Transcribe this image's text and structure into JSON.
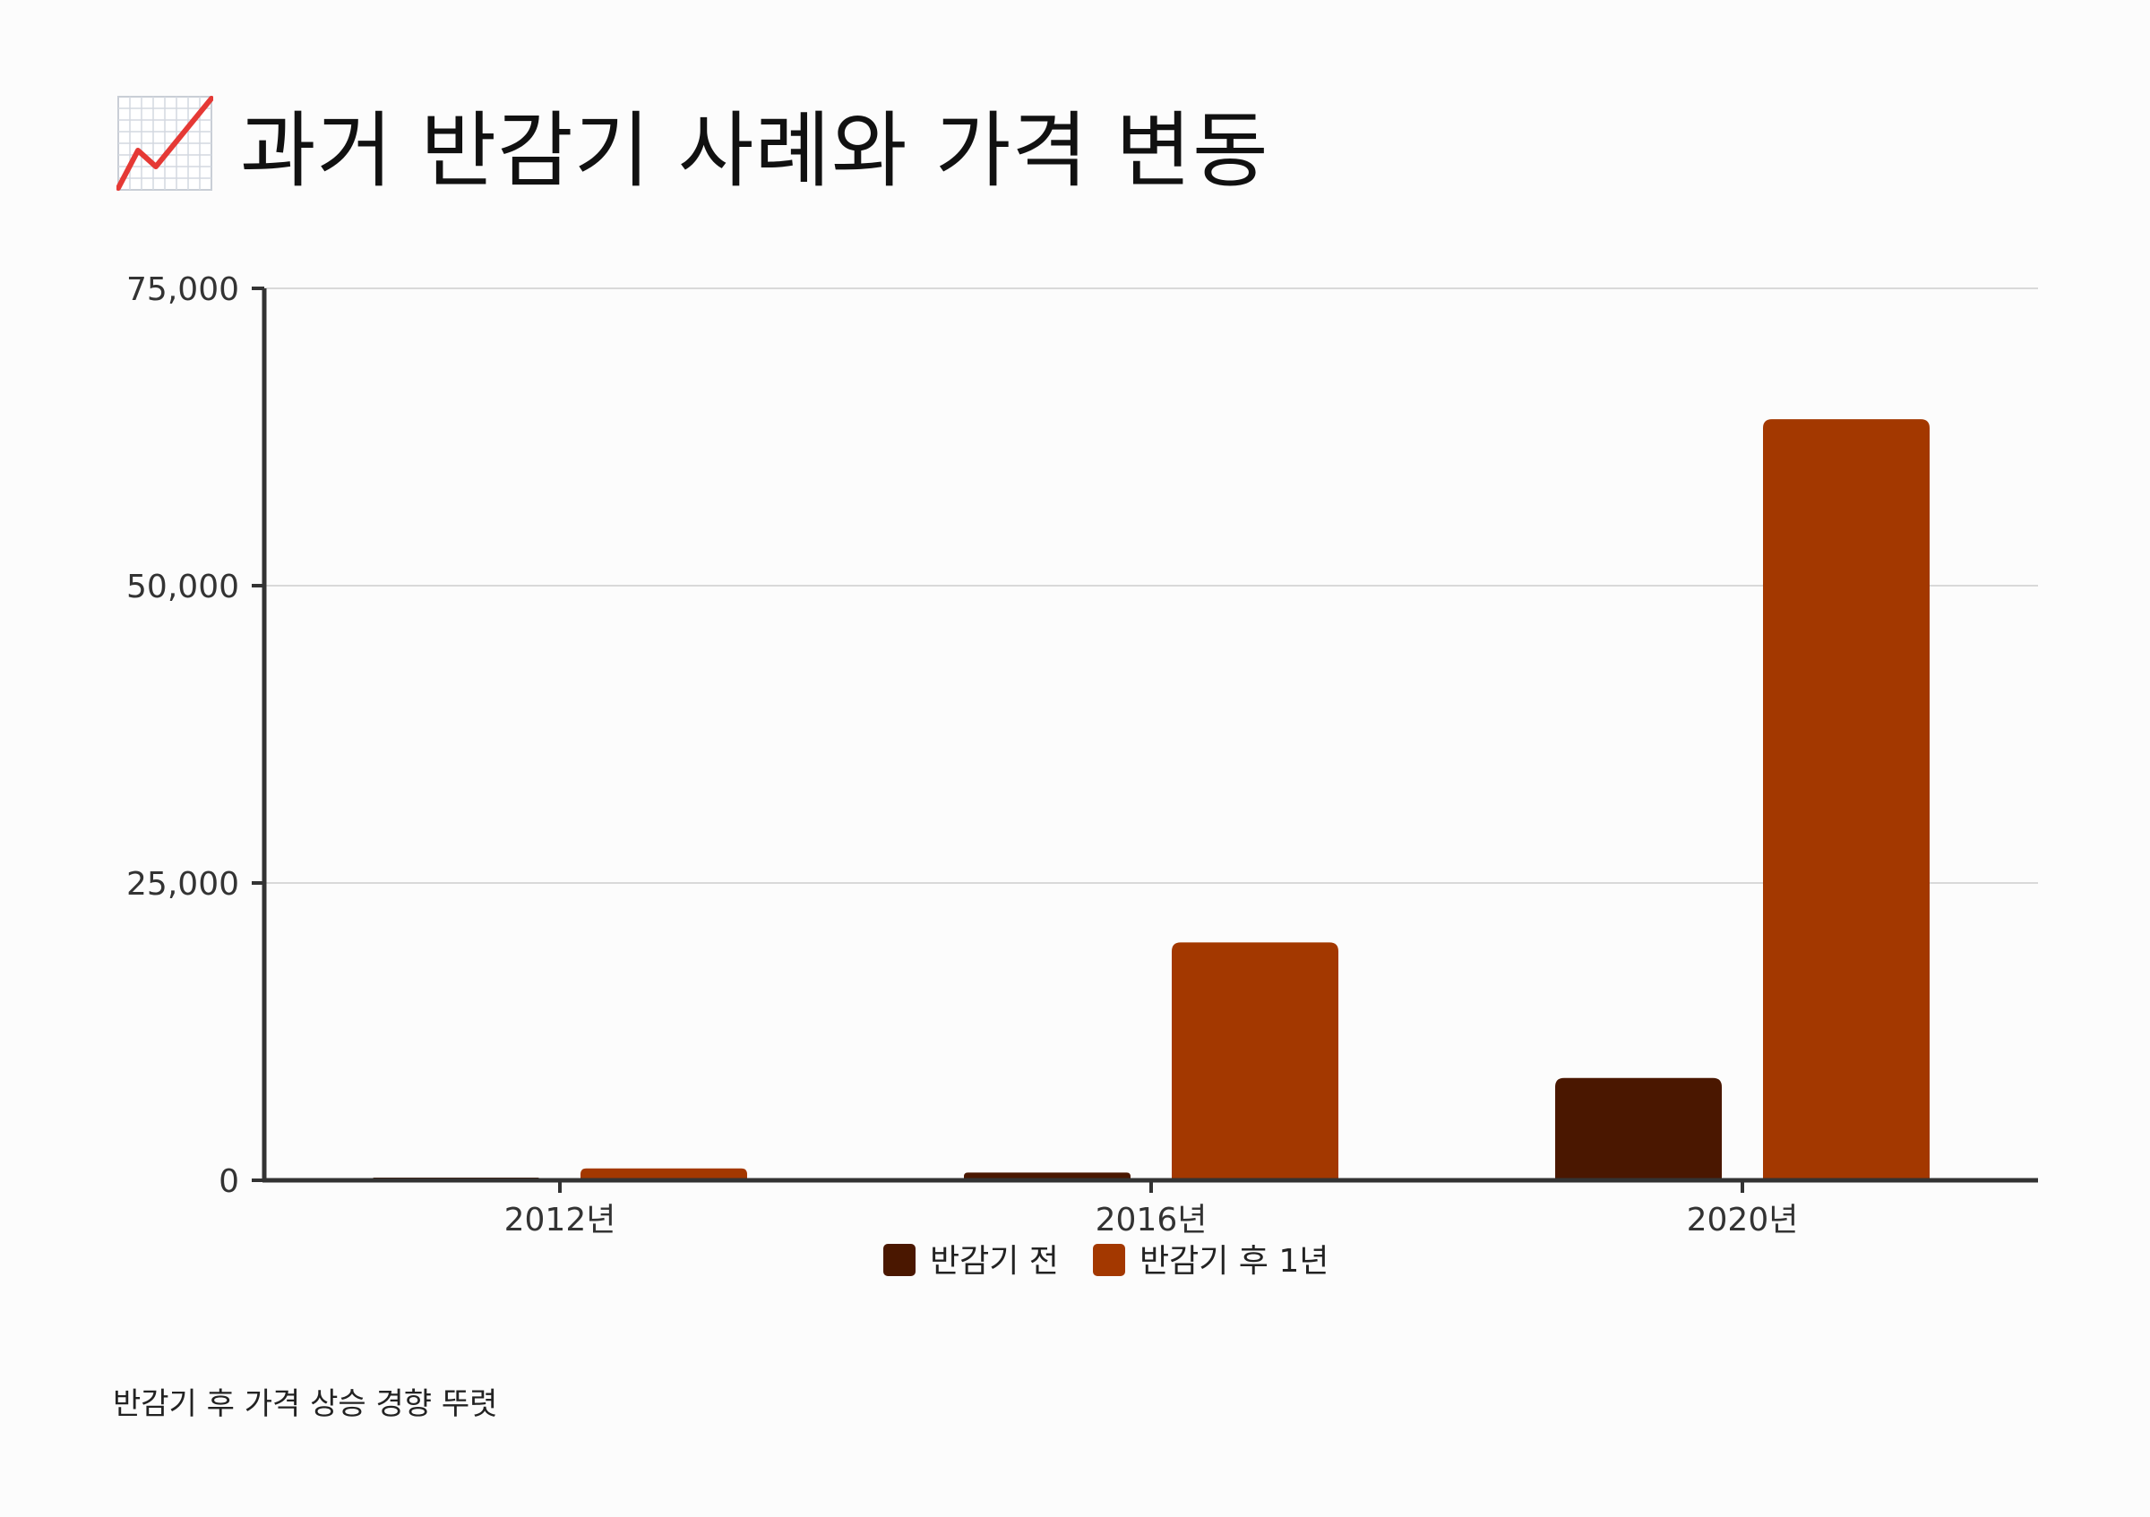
{
  "header": {
    "title": "과거 반감기 사례와 가격 변동",
    "icon": "chart-increasing-icon"
  },
  "footnote": "반감기 후 가격 상승 경향 뚜렷",
  "colors": {
    "series_before": "#4a1700",
    "series_after": "#a33800",
    "grid": "#d9d9d9",
    "axis": "#333333",
    "icon_line": "#e53935"
  },
  "chart_data": {
    "type": "bar",
    "title": "과거 반감기 사례와 가격 변동",
    "xlabel": "",
    "ylabel": "",
    "categories": [
      "2012년",
      "2016년",
      "2020년"
    ],
    "series": [
      {
        "name": "반감기 전",
        "values": [
          12,
          650,
          8600
        ]
      },
      {
        "name": "반감기 후 1년",
        "values": [
          1000,
          20000,
          64000
        ]
      }
    ],
    "ylim": [
      0,
      75000
    ],
    "yticks": [
      0,
      25000,
      50000,
      75000
    ],
    "ytick_labels": [
      "0",
      "25,000",
      "50,000",
      "75,000"
    ],
    "grid": true,
    "legend_position": "bottom-center"
  }
}
